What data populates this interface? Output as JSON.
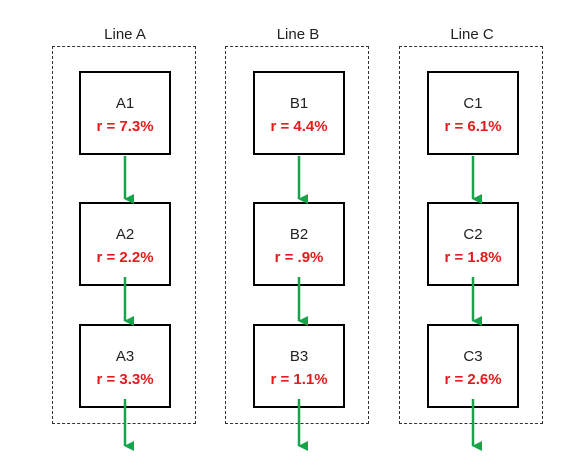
{
  "colors": {
    "rate_text": "#e31b1b",
    "arrow": "#17a34a",
    "border": "#000000"
  },
  "lines": [
    {
      "title": "Line A",
      "nodes": [
        {
          "name": "A1",
          "rate": "r = 7.3%"
        },
        {
          "name": "A2",
          "rate": "r = 2.2%"
        },
        {
          "name": "A3",
          "rate": "r = 3.3%"
        }
      ]
    },
    {
      "title": "Line B",
      "nodes": [
        {
          "name": "B1",
          "rate": "r = 4.4%"
        },
        {
          "name": "B2",
          "rate": "r = .9%"
        },
        {
          "name": "B3",
          "rate": "r = 1.1%"
        }
      ]
    },
    {
      "title": "Line C",
      "nodes": [
        {
          "name": "C1",
          "rate": "r = 6.1%"
        },
        {
          "name": "C2",
          "rate": "r = 1.8%"
        },
        {
          "name": "C3",
          "rate": "r = 2.6%"
        }
      ]
    }
  ]
}
